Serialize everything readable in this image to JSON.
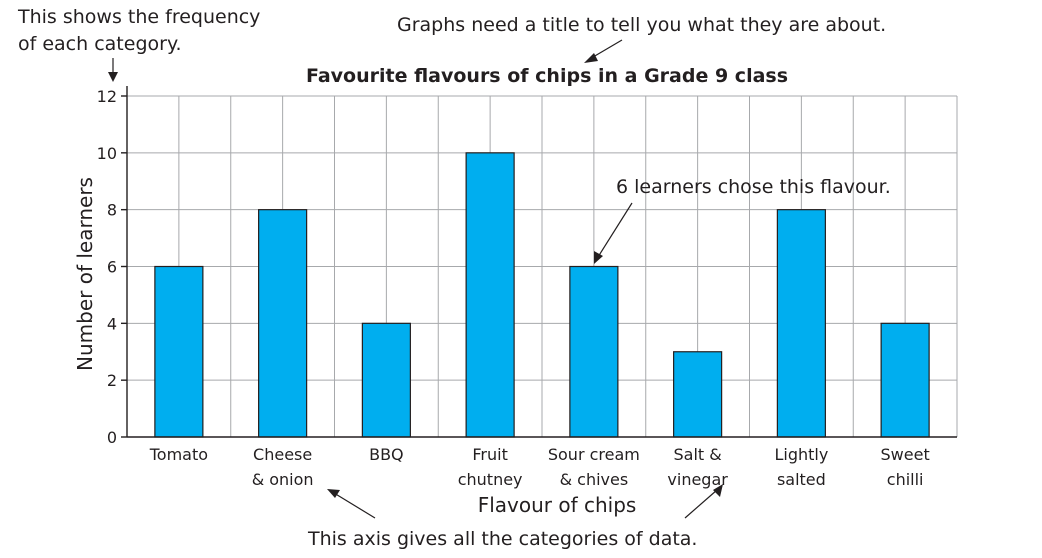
{
  "chart_data": {
    "type": "bar",
    "title": "Favourite flavours of chips in a Grade 9 class",
    "xlabel": "Flavour of chips",
    "ylabel": "Number of learners",
    "categories": [
      [
        "Tomato"
      ],
      [
        "Cheese",
        "& onion"
      ],
      [
        "BBQ"
      ],
      [
        "Fruit",
        "chutney"
      ],
      [
        "Sour cream",
        "& chives"
      ],
      [
        "Salt &",
        "vinegar"
      ],
      [
        "Lightly",
        "salted"
      ],
      [
        "Sweet",
        "chilli"
      ]
    ],
    "values": [
      6,
      8,
      4,
      10,
      6,
      3,
      8,
      4
    ],
    "ylim": [
      0,
      12
    ],
    "yticks": [
      0,
      2,
      4,
      6,
      8,
      10,
      12
    ],
    "grid": true,
    "bar_color": "#00aeef",
    "annotations": {
      "frequency_note": [
        "This shows the frequency",
        "of each category."
      ],
      "title_note": "Graphs need a title to tell you what they are about.",
      "value_note": "6 learners chose this flavour.",
      "category_note": "This axis gives all the categories of data."
    }
  }
}
